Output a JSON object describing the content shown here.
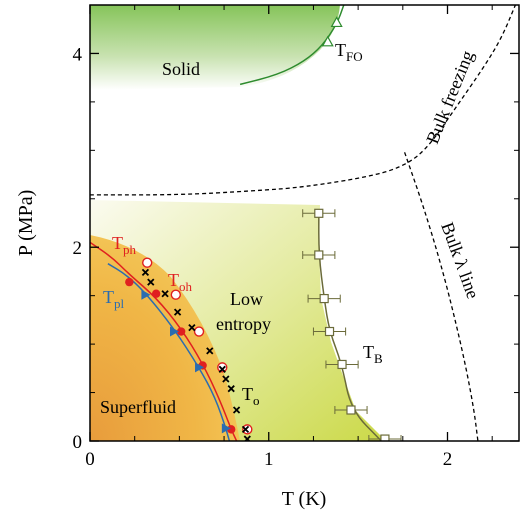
{
  "chart_data": {
    "type": "scatter",
    "xlabel": "T (K)",
    "ylabel": "P (MPa)",
    "xlim": [
      0,
      2.4
    ],
    "ylim": [
      0,
      4.5
    ],
    "x_ticks": [
      "0",
      "1",
      "2"
    ],
    "y_ticks": [
      "0",
      "2",
      "4"
    ],
    "grid": false,
    "region_labels": {
      "solid": "Solid",
      "low_entropy_1": "Low",
      "low_entropy_2": "entropy",
      "superfluid": "Superfluid",
      "bulk_freezing": "Bulk freezing",
      "bulk_lambda": "Bulk λ line"
    },
    "series": [
      {
        "name": "T_FO",
        "label_main": "T",
        "label_sub": "FO",
        "marker": "open-triangle",
        "color": "#2e8b2e",
        "x": [
          1.33,
          1.38
        ],
        "y": [
          4.12,
          4.32
        ]
      },
      {
        "name": "T_B",
        "label_main": "T",
        "label_sub": "B",
        "marker": "open-square",
        "color": "#6b6b3a",
        "x": [
          1.28,
          1.28,
          1.31,
          1.34,
          1.41,
          1.46,
          1.65
        ],
        "y": [
          2.35,
          1.92,
          1.47,
          1.13,
          0.79,
          0.32,
          0.02
        ],
        "xerr": [
          0.09,
          0.09,
          0.09,
          0.09,
          0.09,
          0.09,
          0.09
        ]
      },
      {
        "name": "T_ph",
        "label_main": "T",
        "label_sub": "ph",
        "marker": "filled-circle",
        "color": "#e02020",
        "x": [
          0.22,
          0.37,
          0.51,
          0.63,
          0.79
        ],
        "y": [
          1.64,
          1.52,
          1.13,
          0.78,
          0.12
        ]
      },
      {
        "name": "T_oh",
        "label_main": "T",
        "label_sub": "oh",
        "marker": "open-circle",
        "color": "#e02020",
        "x": [
          0.32,
          0.48,
          0.61,
          0.74,
          0.88
        ],
        "y": [
          1.84,
          1.51,
          1.13,
          0.76,
          0.12
        ]
      },
      {
        "name": "T_pl",
        "label_main": "T",
        "label_sub": "pl",
        "marker": "filled-triangle",
        "color": "#2b6cb0",
        "x": [
          0.31,
          0.47,
          0.61,
          0.76
        ],
        "y": [
          1.51,
          1.13,
          0.76,
          0.13
        ]
      },
      {
        "name": "T_o",
        "label_main": "T",
        "label_sub": "o",
        "marker": "cross",
        "color": "#000000",
        "x": [
          0.31,
          0.34,
          0.42,
          0.49,
          0.57,
          0.67,
          0.74,
          0.76,
          0.79,
          0.82,
          0.87,
          0.88
        ],
        "y": [
          1.74,
          1.64,
          1.52,
          1.33,
          1.17,
          0.93,
          0.74,
          0.64,
          0.54,
          0.32,
          0.12,
          0.02
        ]
      }
    ],
    "curves": [
      {
        "name": "T_ph fit",
        "color": "#e02020",
        "style": "solid",
        "x": [
          0.0,
          0.12,
          0.22,
          0.37,
          0.51,
          0.63,
          0.72,
          0.79,
          0.82
        ],
        "y": [
          2.05,
          1.9,
          1.72,
          1.48,
          1.16,
          0.8,
          0.45,
          0.12,
          0.0
        ]
      },
      {
        "name": "T_pl fit",
        "color": "#2b6cb0",
        "style": "solid",
        "x": [
          0.1,
          0.2,
          0.31,
          0.47,
          0.61,
          0.7,
          0.76,
          0.78
        ],
        "y": [
          1.83,
          1.72,
          1.53,
          1.16,
          0.76,
          0.45,
          0.13,
          0.0
        ]
      },
      {
        "name": "T_B line",
        "color": "#6b6b3a",
        "style": "solid",
        "x": [
          1.28,
          1.28,
          1.31,
          1.34,
          1.41,
          1.46,
          1.63
        ],
        "y": [
          2.38,
          1.92,
          1.47,
          1.13,
          0.79,
          0.32,
          0.0
        ]
      },
      {
        "name": "T_FO line",
        "color": "#2e8b2e",
        "style": "solid",
        "x": [
          0.84,
          1.05,
          1.2,
          1.3,
          1.38,
          1.42
        ],
        "y": [
          3.68,
          3.78,
          3.92,
          4.08,
          4.3,
          4.5
        ]
      },
      {
        "name": "Bulk freezing",
        "color": "#000000",
        "style": "dashed",
        "x": [
          0.0,
          0.5,
          0.9,
          1.2,
          1.6,
          1.78,
          1.9,
          2.05,
          2.2,
          2.3,
          2.38
        ],
        "y": [
          2.54,
          2.54,
          2.58,
          2.62,
          2.74,
          2.86,
          3.05,
          3.45,
          3.85,
          4.15,
          4.5
        ]
      },
      {
        "name": "Bulk lambda",
        "color": "#000000",
        "style": "dashed",
        "x": [
          1.76,
          1.86,
          1.96,
          2.05,
          2.11,
          2.15,
          2.17
        ],
        "y": [
          2.98,
          2.45,
          1.85,
          1.2,
          0.7,
          0.3,
          0.0
        ]
      }
    ]
  }
}
